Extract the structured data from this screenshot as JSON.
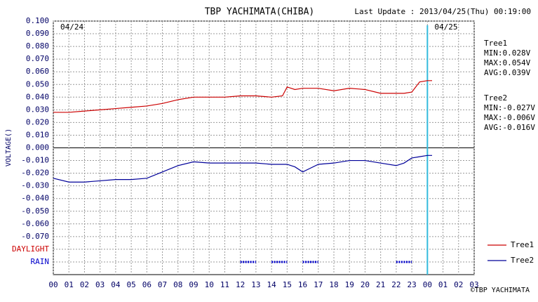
{
  "chart_data": {
    "type": "line",
    "title": "TBP YACHIMATA(CHIBA)",
    "subtitle": "Last Update : 2013/04/25(Thu) 00:19:00",
    "y_label": "VOLTAGE()",
    "credit": "©TBP YACHIMATA",
    "x": [
      0,
      1,
      2,
      3,
      4,
      5,
      6,
      7,
      8,
      9,
      10,
      11,
      12,
      13,
      14,
      14.7,
      15,
      15.5,
      16,
      16.5,
      17,
      18,
      19,
      20,
      21,
      22,
      22.5,
      23,
      23.5,
      24,
      24.3
    ],
    "series": [
      {
        "name": "Tree1",
        "color": "#cc0000",
        "values": [
          0.028,
          0.028,
          0.029,
          0.03,
          0.031,
          0.032,
          0.033,
          0.035,
          0.038,
          0.04,
          0.04,
          0.04,
          0.041,
          0.041,
          0.04,
          0.041,
          0.048,
          0.046,
          0.047,
          0.047,
          0.047,
          0.045,
          0.047,
          0.046,
          0.043,
          0.043,
          0.043,
          0.044,
          0.052,
          0.053,
          0.053
        ],
        "stats": [
          "MIN:0.028V",
          "MAX:0.054V",
          "AVG:0.039V"
        ]
      },
      {
        "name": "Tree2",
        "color": "#000099",
        "values": [
          -0.024,
          -0.027,
          -0.027,
          -0.026,
          -0.025,
          -0.025,
          -0.024,
          -0.019,
          -0.014,
          -0.011,
          -0.012,
          -0.012,
          -0.012,
          -0.012,
          -0.013,
          -0.013,
          -0.013,
          -0.015,
          -0.019,
          -0.016,
          -0.013,
          -0.012,
          -0.01,
          -0.01,
          -0.012,
          -0.014,
          -0.012,
          -0.008,
          -0.007,
          -0.006,
          -0.006
        ],
        "stats": [
          "MIN:-0.027V",
          "MAX:-0.006V",
          "AVG:-0.016V"
        ]
      }
    ],
    "xlim": [
      0,
      27
    ],
    "xticks": [
      {
        "value": 0,
        "label": "00"
      },
      {
        "value": 1,
        "label": "01"
      },
      {
        "value": 2,
        "label": "02"
      },
      {
        "value": 3,
        "label": "03"
      },
      {
        "value": 4,
        "label": "04"
      },
      {
        "value": 5,
        "label": "05"
      },
      {
        "value": 6,
        "label": "06"
      },
      {
        "value": 7,
        "label": "07"
      },
      {
        "value": 8,
        "label": "08"
      },
      {
        "value": 9,
        "label": "09"
      },
      10,
      11,
      12,
      13,
      14,
      15,
      16,
      17,
      18,
      19,
      20,
      21,
      22,
      23,
      {
        "value": 24,
        "label": "00"
      },
      {
        "value": 25,
        "label": "01"
      },
      {
        "value": 26,
        "label": "02"
      },
      {
        "value": 27,
        "label": "03"
      }
    ],
    "ylim": [
      -0.1,
      0.1
    ],
    "yticks": [
      {
        "value": 0.1,
        "label": "0.100"
      },
      {
        "value": 0.09,
        "label": "0.090"
      },
      {
        "value": 0.08,
        "label": "0.080"
      },
      {
        "value": 0.07,
        "label": "0.070"
      },
      {
        "value": 0.06,
        "label": "0.060"
      },
      {
        "value": 0.05,
        "label": "0.050"
      },
      {
        "value": 0.04,
        "label": "0.040"
      },
      {
        "value": 0.03,
        "label": "0.030"
      },
      {
        "value": 0.02,
        "label": "0.020"
      },
      {
        "value": 0.01,
        "label": "0.010"
      },
      {
        "value": 0,
        "label": "0.000"
      },
      {
        "value": -0.01,
        "label": "-0.010"
      },
      {
        "value": -0.02,
        "label": "-0.020"
      },
      {
        "value": -0.03,
        "label": "-0.030"
      },
      {
        "value": -0.04,
        "label": "-0.040"
      },
      {
        "value": -0.05,
        "label": "-0.050"
      },
      {
        "value": -0.06,
        "label": "-0.060"
      },
      {
        "value": -0.07,
        "label": "-0.070"
      }
    ],
    "daylight": {
      "label": "DAYLIGHT",
      "row": -0.08,
      "color": "#cc0000"
    },
    "rain": {
      "label": "RAIN",
      "row": -0.09,
      "color": "#0000cc",
      "periods": [
        [
          12,
          13
        ],
        [
          14,
          15
        ],
        [
          16,
          17
        ],
        [
          22,
          23
        ]
      ]
    },
    "date_labels": [
      {
        "x": 0,
        "label": "04/24"
      },
      {
        "x": 24,
        "label": "04/25"
      }
    ],
    "now_x": 24,
    "now_color": "#33bbdd",
    "grid": true
  }
}
